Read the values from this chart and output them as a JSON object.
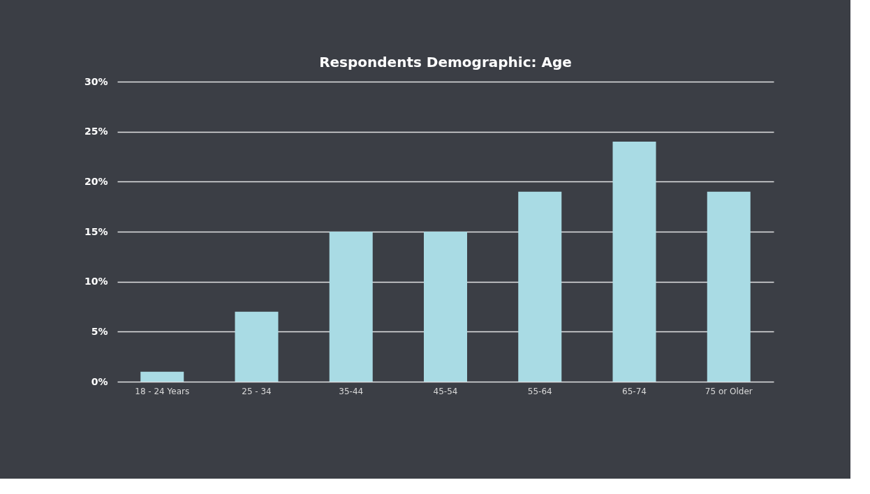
{
  "chart_data": {
    "type": "bar",
    "title": "Respondents Demographic: Age",
    "categories": [
      "18 - 24 Years",
      "25 - 34",
      "35-44",
      "45-54",
      "55-64",
      "65-74",
      "75 or Older"
    ],
    "values": [
      1,
      7,
      15,
      15,
      19,
      24,
      19
    ],
    "color": "#a9dbe4",
    "ylim": [
      0,
      30
    ],
    "yticks": [
      {
        "value": 0,
        "label": "0%"
      },
      {
        "value": 5,
        "label": "5%"
      },
      {
        "value": 10,
        "label": "10%"
      },
      {
        "value": 15,
        "label": "15%"
      },
      {
        "value": 20,
        "label": "20%"
      },
      {
        "value": 25,
        "label": "25%"
      },
      {
        "value": 30,
        "label": "30%"
      }
    ],
    "grid": "y"
  }
}
